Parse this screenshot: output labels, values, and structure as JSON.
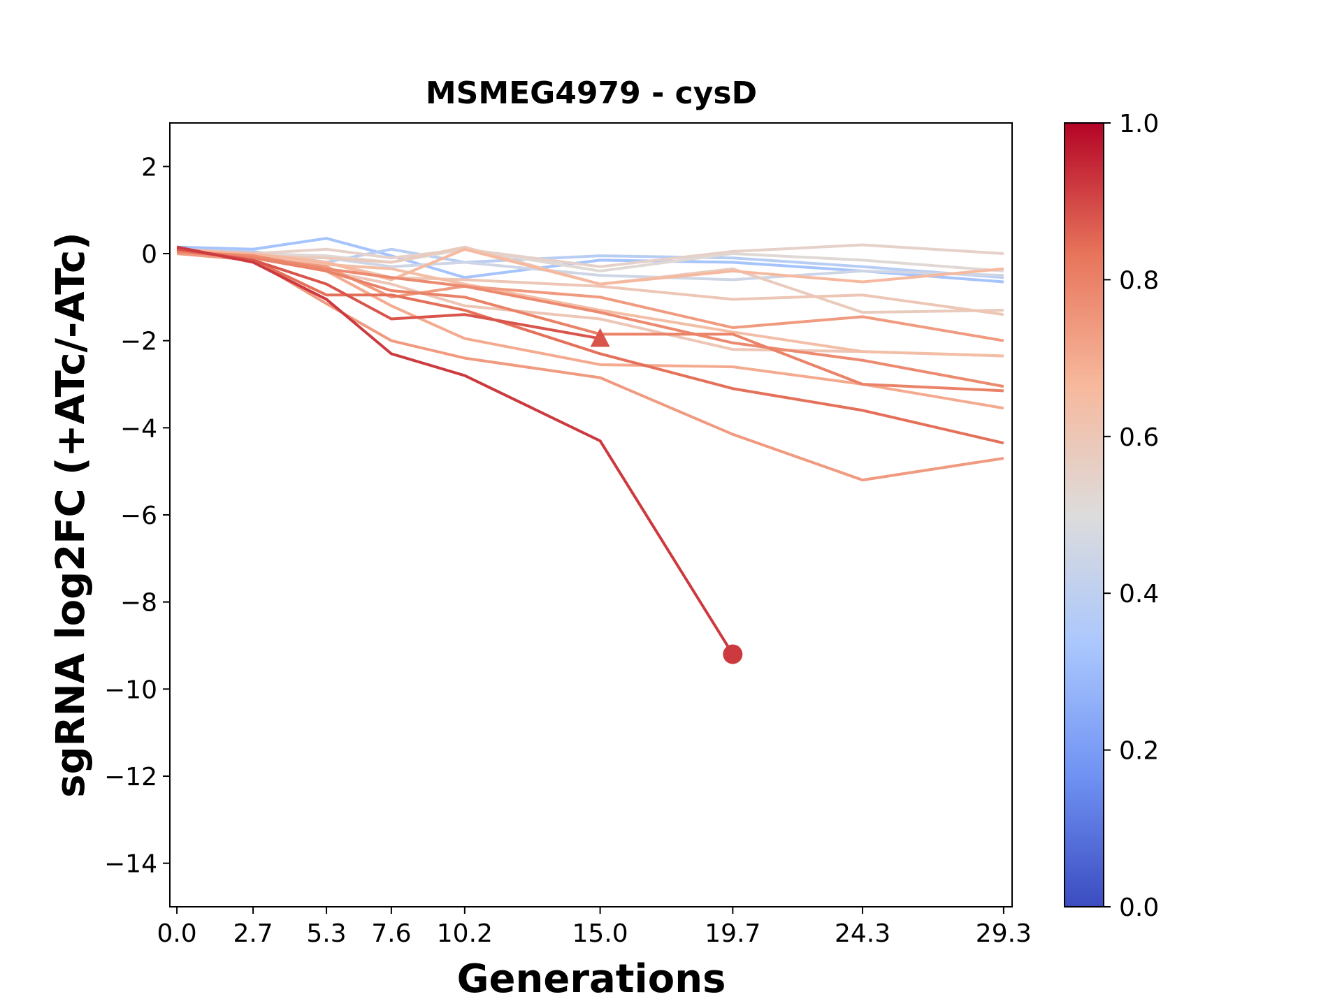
{
  "chart_data": {
    "type": "line",
    "title": "MSMEG4979 - cysD",
    "xlabel": "Generations",
    "ylabel": "sgRNA log2FC (+ATc/-ATc)",
    "xlim": [
      -0.25,
      29.6
    ],
    "ylim": [
      -15,
      3
    ],
    "x_ticks": [
      0.0,
      2.7,
      5.3,
      7.6,
      10.2,
      15.0,
      19.7,
      24.3,
      29.3
    ],
    "x_tick_labels": [
      "0.0",
      "2.7",
      "5.3",
      "7.6",
      "10.2",
      "15.0",
      "19.7",
      "24.3",
      "29.3"
    ],
    "y_ticks": [
      2,
      0,
      -2,
      -4,
      -6,
      -8,
      -10,
      -12,
      -14
    ],
    "y_tick_labels": [
      "2",
      "0",
      "−2",
      "−4",
      "−6",
      "−8",
      "−10",
      "−12",
      "−14"
    ],
    "grid": false,
    "legend": "none",
    "colorbar": {
      "min": 0.0,
      "max": 1.0,
      "ticks": [
        0.0,
        0.2,
        0.4,
        0.6,
        0.8,
        1.0
      ],
      "tick_labels": [
        "0.0",
        "0.2",
        "0.4",
        "0.6",
        "0.8",
        "1.0"
      ],
      "colormap": "coolwarm",
      "colors": [
        "#3b4cc0",
        "#6f92f3",
        "#aac7fd",
        "#dddcdc",
        "#f7b89c",
        "#e7745b",
        "#b40426"
      ]
    },
    "series": [
      {
        "strength": 0.32,
        "values": [
          0.15,
          0.1,
          0.35,
          -0.05,
          -0.55,
          -0.15,
          -0.2,
          -0.4,
          -0.65
        ]
      },
      {
        "strength": 0.38,
        "values": [
          0.1,
          0.05,
          -0.2,
          0.1,
          -0.2,
          -0.05,
          -0.1,
          -0.3,
          -0.55
        ]
      },
      {
        "strength": 0.45,
        "values": [
          0.05,
          0.0,
          -0.1,
          -0.3,
          -0.2,
          -0.5,
          -0.6,
          -0.4,
          -0.5
        ]
      },
      {
        "strength": 0.52,
        "values": [
          0.0,
          0.0,
          -0.05,
          -0.2,
          0.1,
          -0.4,
          0.0,
          -0.15,
          -0.4
        ]
      },
      {
        "strength": 0.55,
        "values": [
          0.0,
          0.0,
          0.1,
          -0.1,
          0.1,
          -0.3,
          0.05,
          0.2,
          0.0
        ]
      },
      {
        "strength": 0.58,
        "values": [
          0.0,
          -0.05,
          -0.1,
          -0.2,
          0.15,
          -0.7,
          -0.35,
          -1.35,
          -1.3
        ]
      },
      {
        "strength": 0.6,
        "values": [
          0.0,
          -0.05,
          -0.2,
          -0.55,
          -0.6,
          -0.75,
          -1.05,
          -0.95,
          -1.4
        ]
      },
      {
        "strength": 0.6,
        "values": [
          0.0,
          -0.05,
          -0.4,
          -0.7,
          -1.2,
          -1.5,
          -2.2,
          -2.25,
          -2.35
        ]
      },
      {
        "strength": 0.64,
        "values": [
          0.1,
          -0.05,
          -0.25,
          -0.35,
          -0.7,
          -1.3,
          -1.8,
          -2.25,
          -2.35
        ]
      },
      {
        "strength": 0.66,
        "values": [
          0.1,
          0.0,
          -0.2,
          -0.6,
          0.1,
          -0.7,
          -0.4,
          -0.65,
          -0.35
        ]
      },
      {
        "strength": 0.7,
        "values": [
          0.05,
          -0.05,
          -0.4,
          -1.2,
          -1.95,
          -2.55,
          -2.6,
          -3.0,
          -3.55
        ]
      },
      {
        "strength": 0.74,
        "values": [
          0.0,
          -0.1,
          -0.3,
          -1.0,
          -0.75,
          -1.0,
          -1.7,
          -1.45,
          -2.0
        ]
      },
      {
        "strength": 0.74,
        "values": [
          0.0,
          -0.15,
          -1.15,
          -2.0,
          -2.4,
          -2.85,
          -4.15,
          -5.2,
          -4.7
        ]
      },
      {
        "strength": 0.78,
        "values": [
          0.05,
          -0.05,
          -0.35,
          -0.55,
          -0.75,
          -1.35,
          -2.05,
          -2.45,
          -3.05
        ]
      },
      {
        "strength": 0.8,
        "values": [
          0.05,
          -0.1,
          -0.4,
          -0.85,
          -1.0,
          -1.85,
          -1.85,
          -3.0,
          -3.15
        ]
      },
      {
        "strength": 0.84,
        "values": [
          0.1,
          -0.15,
          -0.95,
          -0.95,
          -1.3,
          -2.3,
          -3.1,
          -3.6,
          -4.35
        ]
      },
      {
        "strength": 0.88,
        "values": [
          0.1,
          -0.15,
          -0.7,
          -1.5,
          -1.4,
          -1.95,
          null,
          null,
          null
        ],
        "marker": "triangle"
      },
      {
        "strength": 0.92,
        "values": [
          0.15,
          -0.2,
          -1.05,
          -2.3,
          -2.8,
          -4.3,
          -9.2,
          null,
          null
        ],
        "marker": "circle"
      }
    ]
  }
}
